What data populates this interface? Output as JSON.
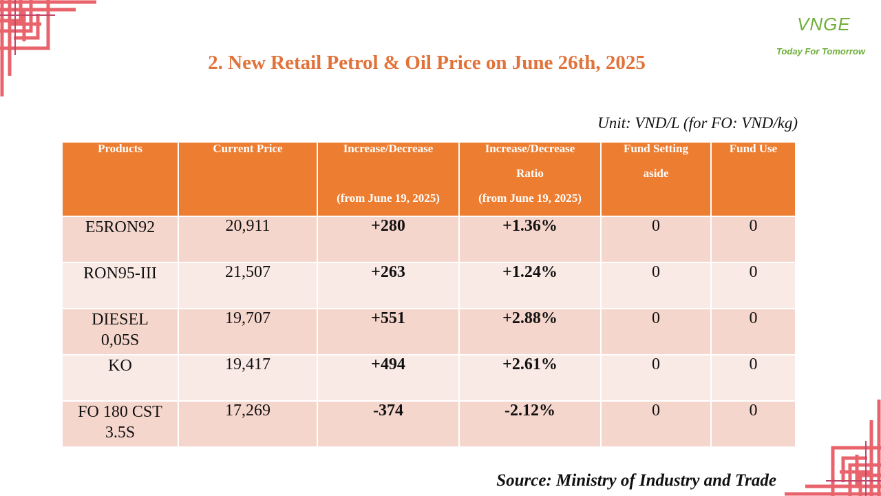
{
  "logo": {
    "mark": "VNGE",
    "tagline": "Today For Tomorrow"
  },
  "title": "2. New Retail Petrol & Oil Price on June 26th, 2025",
  "unit": "Unit: VND/L (for FO: VND/kg)",
  "table": {
    "headers": {
      "products": "Products",
      "current_price": "Current Price",
      "change_line1": "Increase/Decrease",
      "change_line2": "(from June 19, 2025)",
      "ratio_line1": "Increase/Decrease",
      "ratio_line2": "Ratio",
      "ratio_line3": "(from June 19, 2025)",
      "fund_setting_line1": "Fund Setting",
      "fund_setting_line2": "aside",
      "fund_use": "Fund Use"
    },
    "rows": [
      {
        "product_line1": "E5RON92",
        "product_line2": "",
        "price": "20,911",
        "change": "+280",
        "ratio": "+1.36%",
        "fund_setting": "0",
        "fund_use": "0"
      },
      {
        "product_line1": "RON95-III",
        "product_line2": "",
        "price": "21,507",
        "change": "+263",
        "ratio": "+1.24%",
        "fund_setting": "0",
        "fund_use": "0"
      },
      {
        "product_line1": "DIESEL",
        "product_line2": "0,05S",
        "price": "19,707",
        "change": "+551",
        "ratio": "+2.88%",
        "fund_setting": "0",
        "fund_use": "0"
      },
      {
        "product_line1": "KO",
        "product_line2": "",
        "price": "19,417",
        "change": "+494",
        "ratio": "+2.61%",
        "fund_setting": "0",
        "fund_use": "0"
      },
      {
        "product_line1": "FO 180 CST",
        "product_line2": "3.5S",
        "price": "17,269",
        "change": "-374",
        "ratio": "-2.12%",
        "fund_setting": "0",
        "fund_use": "0"
      }
    ]
  },
  "source": "Source: Ministry of Industry and Trade",
  "colors": {
    "accent": "#ed7d31",
    "title": "#e1733a",
    "increase": "#22a046",
    "decrease": "#e01f1f",
    "row_dark": "#f5d6cc",
    "row_light": "#faeae5",
    "decor": "#e8636b",
    "logo": "#6fae3a"
  },
  "icons": {
    "corner_top_left": "lattice-corner-ornament",
    "corner_bottom_right": "lattice-corner-ornament"
  }
}
